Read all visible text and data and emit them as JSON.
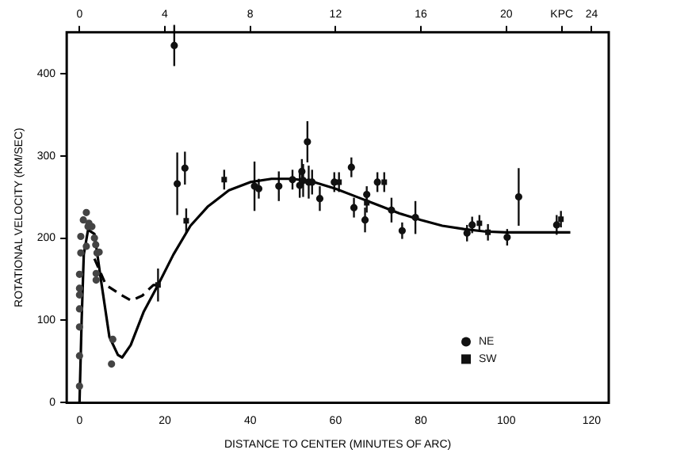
{
  "chart_data": {
    "type": "scatter",
    "xlabel": "DISTANCE TO CENTER (MINUTES OF ARC)",
    "ylabel": "ROTATIONAL VELOCITY (KM/SEC)",
    "xlim": [
      -3,
      124
    ],
    "xticks": [
      0,
      20,
      40,
      60,
      80,
      100,
      120
    ],
    "ylim": [
      0,
      450
    ],
    "yticks": [
      0,
      100,
      200,
      300,
      400
    ],
    "x2lim": [
      -0.6,
      24.8
    ],
    "x2ticks": [
      0,
      4,
      8,
      12,
      16,
      20,
      {
        "value": 22.6,
        "label": "KPC"
      },
      24
    ],
    "grid": false,
    "legend": "bottom right",
    "series": [
      {
        "name": "NE",
        "marker": "circle",
        "color": "#111111",
        "x": [
          22.2,
          22.9,
          24.7,
          41,
          42,
          46.7,
          49.9,
          51.6,
          52.1,
          52.4,
          53.4,
          53.7,
          54.5,
          56.3,
          59.7,
          63.7,
          64.3,
          66.9,
          67.3,
          69.8,
          73.1,
          75.6,
          78.7,
          90.8,
          92,
          100.2,
          102.9,
          111.8
        ],
        "values": [
          434,
          266,
          285,
          263,
          260,
          263,
          271,
          264,
          281,
          270,
          317,
          268,
          268,
          248,
          268,
          286,
          237,
          222,
          253,
          268,
          234,
          209,
          225,
          206,
          216,
          201,
          250,
          216
        ],
        "errors": [
          25,
          38,
          20,
          30,
          12,
          18,
          12,
          15,
          15,
          20,
          25,
          20,
          15,
          15,
          12,
          12,
          12,
          15,
          10,
          12,
          15,
          10,
          20,
          10,
          10,
          10,
          35,
          12
        ]
      },
      {
        "name": "SW",
        "marker": "square",
        "color": "#111111",
        "x": [
          18.4,
          25.0,
          33.9,
          60.8,
          67.3,
          71.4,
          93.7,
          95.7,
          112.8
        ],
        "values": [
          143,
          221,
          271,
          268,
          243,
          268,
          218,
          207,
          223
        ],
        "errors": [
          20,
          15,
          12,
          12,
          12,
          12,
          10,
          10,
          10
        ]
      },
      {
        "marker": "circle",
        "color": "#444444",
        "x": [
          0,
          0,
          0,
          0,
          0,
          0,
          0,
          0.3,
          0.3,
          0.9,
          1.6,
          2.0,
          2.2,
          2.9,
          1.6,
          3.5,
          3.8,
          3.9,
          4.1,
          4.6,
          3.9,
          7.8,
          7.5
        ],
        "values": [
          20,
          57,
          92,
          114,
          131,
          139,
          156,
          182,
          202,
          222,
          231,
          214,
          218,
          214,
          190,
          200,
          192,
          149,
          182,
          183,
          157,
          77,
          47
        ]
      },
      {
        "type": "line",
        "marker": "none",
        "line_style": "solid",
        "color": "#000000",
        "x": [
          0,
          0.5,
          1,
          2,
          3.5,
          5,
          7,
          9,
          10,
          12,
          15,
          18.4,
          22,
          26,
          30,
          35,
          40,
          45,
          50,
          55,
          60,
          65,
          70,
          75,
          80,
          85,
          90,
          95,
          100,
          105,
          115
        ],
        "values": [
          0,
          100,
          180,
          210,
          205,
          150,
          80,
          58,
          55,
          70,
          110,
          143,
          180,
          215,
          238,
          258,
          268,
          272,
          272,
          268,
          260,
          250,
          240,
          230,
          222,
          215,
          211,
          208,
          207,
          207,
          207
        ]
      },
      {
        "type": "line",
        "marker": "none",
        "line_style": "dashed",
        "color": "#000000",
        "x": [
          3.5,
          6.2,
          10.1,
          12.1,
          14.7,
          17.3,
          18.4
        ],
        "values": [
          175,
          143,
          130,
          124,
          130,
          143,
          143
        ]
      }
    ]
  }
}
